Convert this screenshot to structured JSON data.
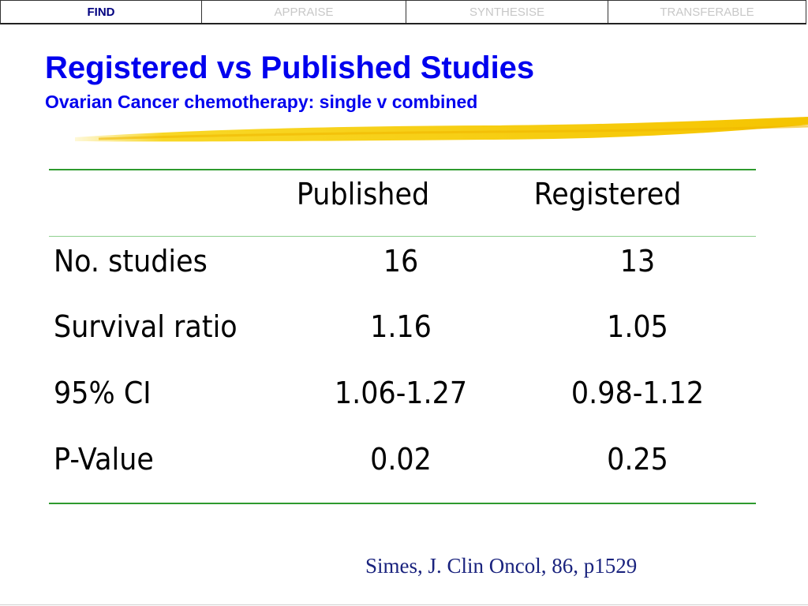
{
  "tabs": [
    {
      "label": "FIND",
      "active": true
    },
    {
      "label": "APPRAISE",
      "active": false
    },
    {
      "label": "SYNTHESISE",
      "active": false
    },
    {
      "label": "TRANSFERABLE",
      "active": false
    }
  ],
  "title": "Registered vs Published Studies",
  "subtitle": "Ovarian Cancer chemotherapy:  single v combined",
  "table": {
    "headers": [
      "",
      "Published",
      "Registered"
    ],
    "rows": [
      {
        "label": "No. studies",
        "published": "16",
        "registered": "13"
      },
      {
        "label": "Survival ratio",
        "published": "1.16",
        "registered": "1.05"
      },
      {
        "label": "95% CI",
        "published": "1.06-1.27",
        "registered": "0.98-1.12"
      },
      {
        "label": "P-Value",
        "published": "0.02",
        "registered": "0.25"
      }
    ]
  },
  "citation": "Simes, J.  Clin Oncol, 86, p1529",
  "colors": {
    "title": "#0000ee",
    "active_tab": "#000080",
    "inactive_tab": "#c8c8c8",
    "rule": "#2e9a2e",
    "highlight": "#f7d000",
    "citation": "#1a237e"
  }
}
